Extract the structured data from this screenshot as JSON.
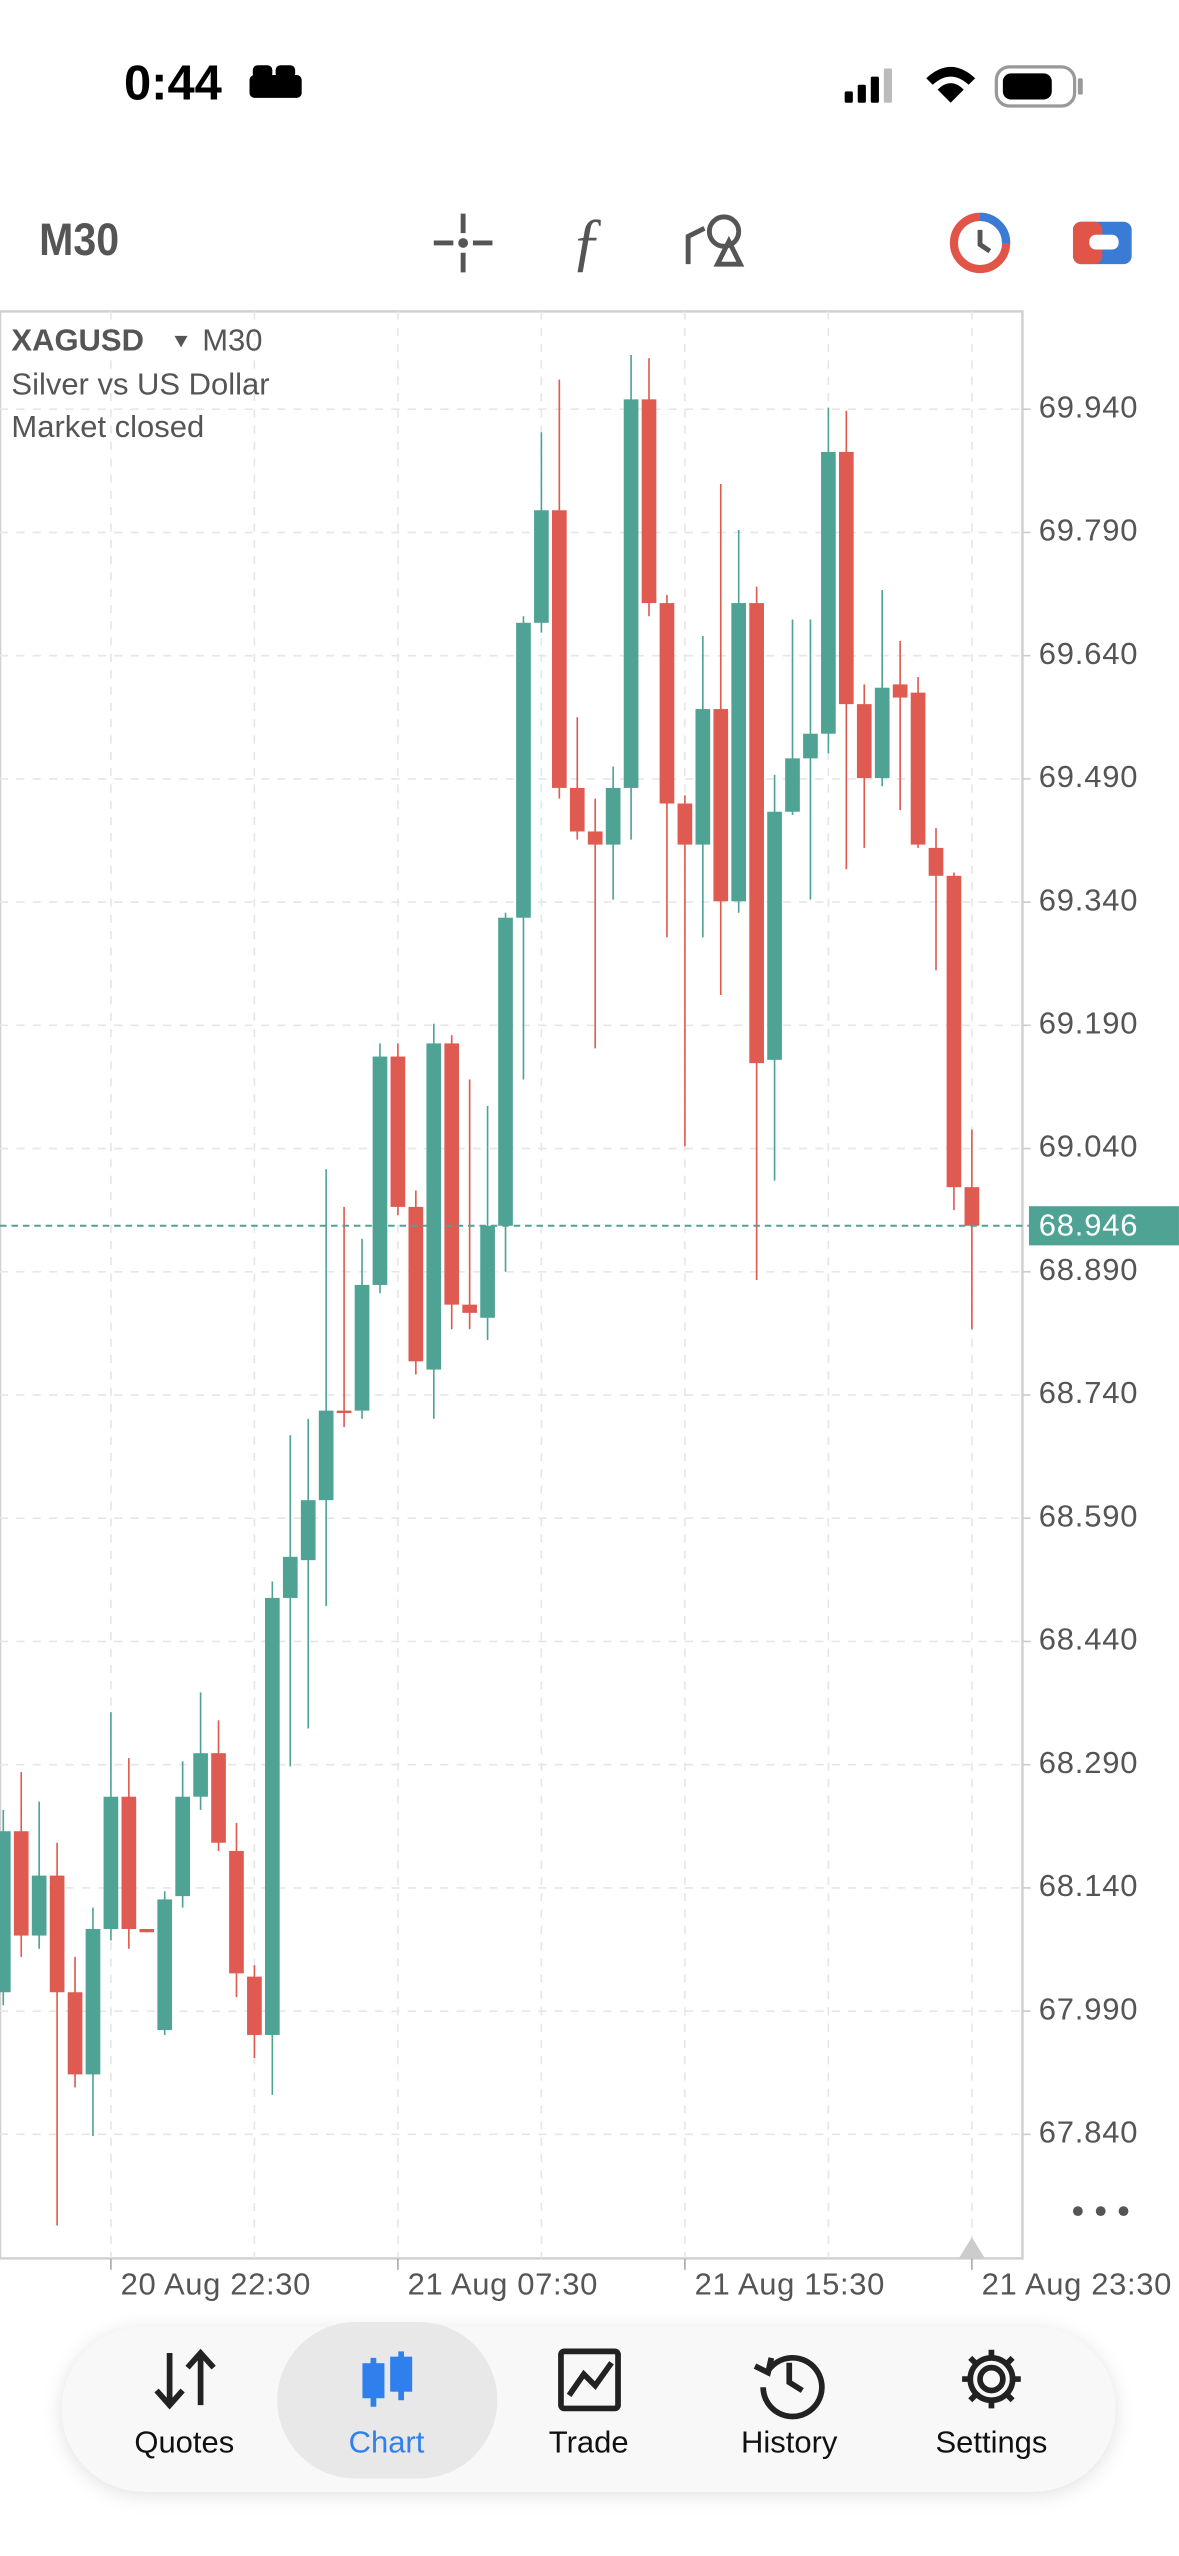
{
  "status_bar": {
    "time": "0:44"
  },
  "toolbar": {
    "timeframe": "M30"
  },
  "chart_data": {
    "type": "candlestick",
    "title": "XAGUSD",
    "timeframe": "M30",
    "subtitle": "Silver vs US Dollar",
    "annotation": "Market closed",
    "categories": [
      null,
      null,
      null,
      null,
      null,
      null,
      "20 Aug 22:30",
      null,
      null,
      null,
      null,
      null,
      null,
      null,
      null,
      null,
      null,
      null,
      null,
      null,
      null,
      null,
      "21 Aug 07:30",
      null,
      null,
      null,
      null,
      null,
      null,
      null,
      null,
      null,
      null,
      null,
      null,
      null,
      null,
      null,
      "21 Aug 15:30",
      null,
      null,
      null,
      null,
      null,
      null,
      null,
      null,
      null,
      null,
      null,
      null,
      null,
      null,
      null,
      "21 Aug 23:30"
    ],
    "open": [
      68.013,
      68.209,
      68.082,
      68.155,
      68.013,
      67.913,
      68.09,
      68.251,
      68.09,
      67.967,
      68.13,
      68.251,
      68.304,
      68.185,
      68.032,
      67.961,
      68.493,
      68.539,
      68.612,
      68.721,
      68.721,
      68.874,
      69.152,
      68.969,
      68.771,
      69.168,
      68.85,
      68.834,
      68.946,
      69.321,
      69.68,
      69.817,
      69.479,
      69.426,
      69.41,
      69.479,
      69.952,
      69.704,
      69.46,
      69.41,
      69.575,
      69.341,
      69.704,
      69.148,
      69.45,
      69.515,
      69.545,
      69.888,
      69.581,
      69.491,
      69.605,
      69.595,
      69.406,
      69.372,
      68.993
    ],
    "high": [
      68.235,
      68.281,
      68.245,
      68.195,
      68.056,
      68.116,
      68.354,
      68.298,
      68.09,
      68.136,
      68.294,
      68.378,
      68.344,
      68.219,
      68.046,
      68.513,
      68.691,
      68.711,
      69.015,
      68.969,
      68.93,
      69.168,
      69.168,
      68.989,
      69.192,
      69.178,
      69.124,
      69.092,
      69.327,
      69.688,
      69.912,
      69.976,
      69.565,
      69.466,
      69.505,
      70.006,
      70.002,
      69.714,
      69.47,
      69.664,
      69.849,
      69.793,
      69.724,
      69.495,
      69.684,
      69.684,
      69.942,
      69.938,
      69.605,
      69.72,
      69.658,
      69.614,
      69.43,
      69.376,
      69.063
    ],
    "low": [
      67.997,
      68.056,
      68.066,
      67.729,
      67.897,
      67.838,
      68.076,
      68.066,
      68.086,
      67.961,
      68.116,
      68.235,
      68.185,
      68.007,
      67.933,
      67.888,
      68.288,
      68.334,
      68.483,
      68.701,
      68.711,
      68.864,
      68.959,
      68.765,
      68.711,
      68.82,
      68.82,
      68.807,
      68.89,
      69.124,
      69.668,
      69.466,
      69.416,
      69.162,
      69.343,
      69.416,
      69.688,
      69.297,
      69.043,
      69.297,
      69.227,
      69.327,
      68.88,
      69.001,
      69.446,
      69.343,
      69.521,
      69.38,
      69.406,
      69.481,
      69.452,
      69.406,
      69.257,
      68.965,
      68.82
    ],
    "close": [
      68.209,
      68.082,
      68.155,
      68.013,
      67.913,
      68.09,
      68.251,
      68.09,
      68.086,
      68.126,
      68.251,
      68.304,
      68.195,
      68.036,
      67.961,
      68.493,
      68.543,
      68.612,
      68.721,
      68.719,
      68.874,
      69.152,
      68.969,
      68.781,
      69.168,
      68.85,
      68.84,
      68.946,
      69.321,
      69.68,
      69.817,
      69.479,
      69.426,
      69.41,
      69.479,
      69.952,
      69.704,
      69.46,
      69.41,
      69.575,
      69.341,
      69.704,
      69.144,
      69.45,
      69.515,
      69.545,
      69.888,
      69.581,
      69.491,
      69.601,
      69.589,
      69.41,
      69.372,
      68.993,
      68.946
    ],
    "up_color": "#4fa394",
    "down_color": "#df5a51",
    "last_price": 68.946,
    "last_price_color": "#4fa394",
    "ylim": [
      67.689,
      70.059
    ],
    "yticks": [
      {
        "value": 69.94,
        "label": "69.940"
      },
      {
        "value": 69.79,
        "label": "69.790"
      },
      {
        "value": 69.64,
        "label": "69.640"
      },
      {
        "value": 69.49,
        "label": "69.490"
      },
      {
        "value": 69.34,
        "label": "69.340"
      },
      {
        "value": 69.19,
        "label": "69.190"
      },
      {
        "value": 69.04,
        "label": "69.040"
      },
      {
        "value": 68.89,
        "label": "68.890"
      },
      {
        "value": 68.74,
        "label": "68.740"
      },
      {
        "value": 68.59,
        "label": "68.590"
      },
      {
        "value": 68.44,
        "label": "68.440"
      },
      {
        "value": 68.29,
        "label": "68.290"
      },
      {
        "value": 68.14,
        "label": "68.140"
      },
      {
        "value": 67.99,
        "label": "67.990"
      },
      {
        "value": 67.84,
        "label": "67.840"
      }
    ],
    "grid": true
  },
  "tab_bar": {
    "tabs": [
      "Quotes",
      "Chart",
      "Trade",
      "History",
      "Settings"
    ],
    "active": "Chart"
  }
}
